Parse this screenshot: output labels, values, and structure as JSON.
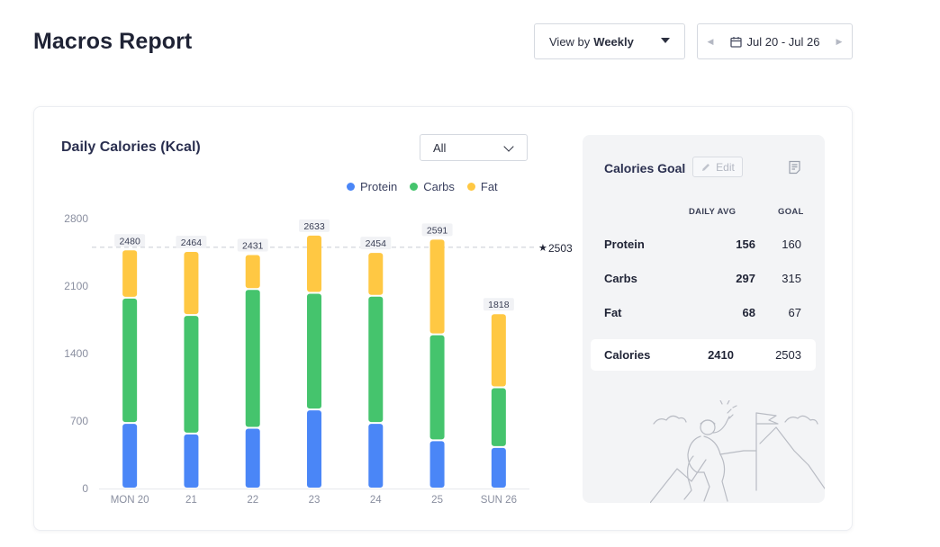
{
  "header": {
    "title": "Macros Report",
    "view_prefix": "View by",
    "view_value": "Weekly",
    "date_range": "Jul 20 - Jul 26"
  },
  "chart_card": {
    "title": "Daily Calories (Kcal)",
    "filter_value": "All",
    "legend": [
      {
        "label": "Protein",
        "color": "#4a86f7"
      },
      {
        "label": "Carbs",
        "color": "#45c46d"
      },
      {
        "label": "Fat",
        "color": "#ffc843"
      }
    ],
    "goal_line_label": "2503"
  },
  "chart_data": {
    "type": "bar",
    "stacked": true,
    "categories": [
      "MON 20",
      "21",
      "22",
      "23",
      "24",
      "25",
      "SUN 26"
    ],
    "series": [
      {
        "name": "Protein",
        "color": "#4a86f7",
        "values": [
          680,
          570,
          630,
          820,
          680,
          500,
          430
        ]
      },
      {
        "name": "Carbs",
        "color": "#45c46d",
        "values": [
          1300,
          1230,
          1440,
          1210,
          1320,
          1100,
          620
        ]
      },
      {
        "name": "Fat",
        "color": "#ffc843",
        "values": [
          500,
          664,
          361,
          603,
          454,
          991,
          768
        ]
      }
    ],
    "totals": [
      2480,
      2464,
      2431,
      2633,
      2454,
      2591,
      1818
    ],
    "goal": 2503,
    "ylim": [
      0,
      2800
    ],
    "yticks": [
      0,
      700,
      1400,
      2100,
      2800
    ],
    "grid": false,
    "legend_position": "top-right"
  },
  "goal_panel": {
    "title": "Calories Goal",
    "edit_label": "Edit",
    "col_daily_avg": "DAILY AVG",
    "col_goal": "GOAL",
    "rows": [
      {
        "label": "Protein",
        "avg": "156",
        "goal": "160"
      },
      {
        "label": "Carbs",
        "avg": "297",
        "goal": "315"
      },
      {
        "label": "Fat",
        "avg": "68",
        "goal": "67"
      }
    ],
    "calories": {
      "label": "Calories",
      "avg": "2410",
      "goal": "2503"
    }
  }
}
